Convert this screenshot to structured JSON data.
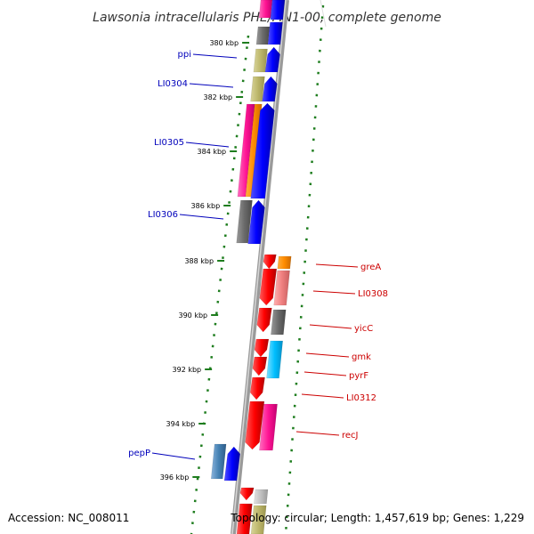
{
  "header": {
    "title": "Lawsonia intracellularis PHE/MN1-00, complete genome"
  },
  "footer": {
    "accession": "Accession: NC_008011",
    "summary": "Topology: circular; Length: 1,457,619 bp; Genes: 1,229"
  },
  "colors": {
    "backbone": "#8c8c8c",
    "tick": "#1e7d1e",
    "forward_label": "#0000bb",
    "reverse_label": "#cc0000"
  },
  "ticks": [
    "380 kbp",
    "382 kbp",
    "384 kbp",
    "386 kbp",
    "388 kbp",
    "390 kbp",
    "392 kbp",
    "394 kbp",
    "396 kbp"
  ],
  "forward_labels": [
    "ppi",
    "LI0304",
    "LI0305",
    "LI0306",
    "pepP"
  ],
  "reverse_labels": [
    "greA",
    "LI0308",
    "yicC",
    "gmk",
    "pyrF",
    "LI0312",
    "recJ"
  ],
  "gene_names": [
    "ppi",
    "LI0304",
    "LI0305",
    "LI0306",
    "pepP",
    "greA",
    "LI0308",
    "yicC",
    "gmk",
    "pyrF",
    "LI0312",
    "recJ"
  ]
}
